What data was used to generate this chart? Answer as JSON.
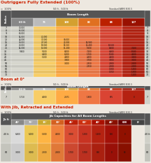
{
  "title1": "Outriggers Fully Extended (100%)",
  "title2": "Boom at 0°",
  "title3": "With Jib, Retracted and Extended",
  "bg_color": "#ede8e0",
  "s1_col_labels": [
    "60 ft",
    "75",
    "100",
    "83",
    "88",
    "127"
  ],
  "s1_rows": [
    [
      "7",
      "70,000",
      "",
      "",
      "",
      "",
      ""
    ],
    [
      "8",
      "66,000",
      "",
      "",
      "",
      "",
      ""
    ],
    [
      "9",
      "60,000",
      "",
      "",
      "",
      "",
      ""
    ],
    [
      "10",
      "52,000",
      "41,000",
      "",
      "",
      "",
      ""
    ],
    [
      "12",
      "42,000",
      "37,000",
      "30,000",
      "",
      "",
      ""
    ],
    [
      "15",
      "30,000",
      "27,500",
      "22,000",
      "14,900",
      "",
      ""
    ],
    [
      "20",
      "20,000",
      "18,000",
      "15,500",
      "12,400",
      "10,500",
      ""
    ],
    [
      "25",
      "14,000",
      "13,000",
      "11,200",
      "9,500",
      "8,500",
      "7,100"
    ],
    [
      "30",
      "9,800",
      "9,100",
      "8,000",
      "7,200",
      "6,800",
      "5,500"
    ],
    [
      "35",
      "",
      "6,800",
      "6,000",
      "5,700",
      "5,500",
      "4,500"
    ],
    [
      "40",
      "",
      "5,200",
      "4,800",
      "4,600",
      "4,400",
      "3,600"
    ],
    [
      "45",
      "",
      "",
      "3,800",
      "3,700",
      "3,600",
      "3,000"
    ],
    [
      "50",
      "",
      "",
      "3,000",
      "2,950",
      "2,900",
      "2,500"
    ],
    [
      "55",
      "",
      "",
      "",
      "2,350",
      "2,300",
      "2,000"
    ],
    [
      "60",
      "",
      "",
      "",
      "",
      "1,900",
      "1,600"
    ],
    [
      "65",
      "",
      "",
      "",
      "",
      "1,550",
      "1,300"
    ],
    [
      "70",
      "",
      "",
      "",
      "",
      "",
      "1,100"
    ]
  ],
  "s2_col_labels": [
    "60 ft",
    "75",
    "100",
    "83",
    "88",
    "127"
  ],
  "s2_rows": [
    [
      "7",
      "1,710",
      "4,000",
      "2,671",
      "1,800",
      "635",
      "0"
    ]
  ],
  "s3_col_labels": [
    "40°",
    "75°",
    "15°",
    "30°",
    "45°",
    "60°",
    "40°",
    "40°",
    "600",
    "0°"
  ],
  "s3_rows": [
    [
      "40 ft",
      "6,400",
      "6,000",
      "5,300",
      "4,000",
      "3,000",
      "1,300",
      "1,400",
      "600",
      "0"
    ],
    [
      "68",
      "3,000",
      "3,000",
      "2,500",
      "2,400",
      "1,700",
      "1,700",
      "800",
      "0",
      "68"
    ]
  ],
  "col_sub_colors": [
    "#888888",
    "#bbbbbb",
    "#d4a030",
    "#e07020",
    "#bb2000",
    "#991000"
  ],
  "col_data_colors": [
    "#c8c8c0",
    "#e8c060",
    "#f0a040",
    "#e07040",
    "#cc4030",
    "#aa2010"
  ],
  "s3_sub_colors": [
    "#888888",
    "#aaaaaa",
    "#c8a830",
    "#d46020",
    "#bb2008",
    "#cc3010",
    "#aa1000",
    "#881000",
    "#660000",
    "#444444"
  ],
  "s3_data_colors": [
    "#cccccc",
    "#ddbb50",
    "#eeaa40",
    "#e07838",
    "#cc4830",
    "#bb3020",
    "#aa2010",
    "#991008",
    "#881000",
    "#553030"
  ],
  "hdr_bg": "#555555",
  "radius_bg_even": "#d0d0c8",
  "radius_bg_odd": "#c4c4bc"
}
